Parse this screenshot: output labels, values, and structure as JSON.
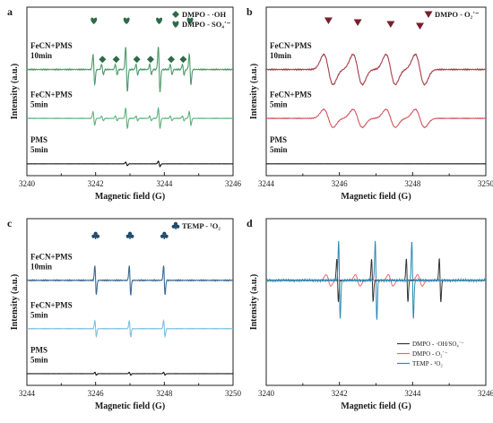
{
  "panels": [
    {
      "label": "a",
      "xlabel": "Magnetic field (G)",
      "ylabel": "Intensity (a.u.)",
      "xlim": [
        3240,
        3246
      ],
      "xticks": [
        "3240",
        "3242",
        "3244",
        "3246"
      ],
      "legend": [
        {
          "marker": "diamond",
          "text": "DMPO - ·OH",
          "color": "#2d6b47"
        },
        {
          "marker": "heart",
          "text": "DMPO - SO₄˙⁻",
          "color": "#2d6b47"
        }
      ],
      "traces": [
        {
          "label": "FeCN+PMS\n10min",
          "color": "#4d9a6b",
          "scale": 1.0
        },
        {
          "label": "FeCN+PMS\n5min",
          "color": "#5cb37a",
          "scale": 0.45
        },
        {
          "label": "PMS\n5min",
          "color": "#111111",
          "scale": 0.12
        }
      ]
    },
    {
      "label": "b",
      "xlabel": "Magnetic field (G)",
      "ylabel": "Intensity (a.u.)",
      "xlim": [
        3244,
        3250
      ],
      "xticks": [
        "3244",
        "3246",
        "3248",
        "3250"
      ],
      "legend": [
        {
          "marker": "triangle",
          "text": "DMPO - O₂˙⁻",
          "color": "#7a1f2a"
        }
      ],
      "traces": [
        {
          "label": "FeCN+PMS\n10min",
          "color": "#a83c48",
          "scale": 1.0
        },
        {
          "label": "FeCN+PMS\n5min",
          "color": "#d2555c",
          "scale": 0.6
        },
        {
          "label": "PMS\n5min",
          "color": "#111111",
          "scale": 0.05
        }
      ]
    },
    {
      "label": "c",
      "xlabel": "Magnetic field (G)",
      "ylabel": "Intensity (a.u.)",
      "xlim": [
        3244,
        3250
      ],
      "xticks": [
        "3244",
        "3246",
        "3248",
        "3250"
      ],
      "legend": [
        {
          "marker": "club",
          "text": "TEMP - ¹O₂",
          "color": "#1f4a6b"
        }
      ],
      "traces": [
        {
          "label": "FeCN+PMS\n10min",
          "color": "#3e6a93",
          "scale": 1.0
        },
        {
          "label": "FeCN+PMS\n5min",
          "color": "#7cc0e3",
          "scale": 0.55
        },
        {
          "label": "PMS\n5min",
          "color": "#111111",
          "scale": 0.1
        }
      ]
    },
    {
      "label": "d",
      "xlabel": "Magnetic field (G)",
      "ylabel": "Intensity (a.u.)",
      "xlim": [
        3240,
        3246
      ],
      "xticks": [
        "3240",
        "3242",
        "3244",
        "3246"
      ],
      "legend": [
        {
          "marker": "line",
          "text": "DMPO - ·OH/SO₄˙⁻",
          "color": "#333333"
        },
        {
          "marker": "line",
          "text": "DMPO - O₂˙⁻",
          "color": "#e86a6a"
        },
        {
          "marker": "line",
          "text": "TEMP - ¹O₂",
          "color": "#2f8ab5"
        }
      ]
    }
  ],
  "chart_data": [
    {
      "panel": "a",
      "type": "line",
      "xlabel": "Magnetic field (G)",
      "ylabel": "Intensity (a.u.)",
      "xlim": [
        3240,
        3246
      ],
      "series": [
        {
          "name": "FeCN+PMS 10min",
          "peaks_x": [
            3241.95,
            3242.9,
            3243.85,
            3244.75
          ]
        },
        {
          "name": "FeCN+PMS 5min",
          "peaks_x": [
            3241.95,
            3242.9,
            3243.85,
            3244.75
          ]
        },
        {
          "name": "PMS 5min",
          "peaks_x": [
            3242.9,
            3243.85
          ]
        }
      ],
      "markers": {
        "heart_x": [
          3241.95,
          3242.9,
          3243.85,
          3244.75
        ],
        "diamond_x": [
          3242.2,
          3242.6,
          3243.2,
          3243.6,
          3244.2,
          3244.55
        ]
      }
    },
    {
      "panel": "b",
      "type": "line",
      "xlabel": "Magnetic field (G)",
      "ylabel": "Intensity (a.u.)",
      "xlim": [
        3244,
        3250
      ],
      "series": [
        {
          "name": "FeCN+PMS 10min",
          "peaks_x": [
            3245.7,
            3246.5,
            3247.4,
            3248.2
          ]
        },
        {
          "name": "FeCN+PMS 5min",
          "peaks_x": [
            3245.7,
            3246.5,
            3247.4,
            3248.2
          ]
        },
        {
          "name": "PMS 5min",
          "peaks_x": []
        }
      ],
      "markers": {
        "triangle_x": [
          3245.7,
          3246.5,
          3247.4,
          3248.2
        ]
      }
    },
    {
      "panel": "c",
      "type": "line",
      "xlabel": "Magnetic field (G)",
      "ylabel": "Intensity (a.u.)",
      "xlim": [
        3244,
        3250
      ],
      "series": [
        {
          "name": "FeCN+PMS 10min",
          "peaks_x": [
            3246.0,
            3247.0,
            3248.0
          ]
        },
        {
          "name": "FeCN+PMS 5min",
          "peaks_x": [
            3246.0,
            3247.0,
            3248.0
          ]
        },
        {
          "name": "PMS 5min",
          "peaks_x": [
            3246.0,
            3247.0,
            3248.0
          ]
        }
      ],
      "markers": {
        "club_x": [
          3246.0,
          3247.0,
          3248.0
        ]
      }
    },
    {
      "panel": "d",
      "type": "line",
      "xlabel": "Magnetic field (G)",
      "ylabel": "Intensity (a.u.)",
      "xlim": [
        3240,
        3246
      ],
      "series": [
        {
          "name": "DMPO - ·OH/SO4·−",
          "peaks_x": [
            3241.95,
            3242.9,
            3243.85,
            3244.75
          ]
        },
        {
          "name": "DMPO - O2·−",
          "peaks_x": [
            3241.7,
            3242.5,
            3243.4,
            3244.2
          ]
        },
        {
          "name": "TEMP - 1O2",
          "peaks_x": [
            3242.0,
            3243.0,
            3244.0
          ]
        }
      ]
    }
  ]
}
